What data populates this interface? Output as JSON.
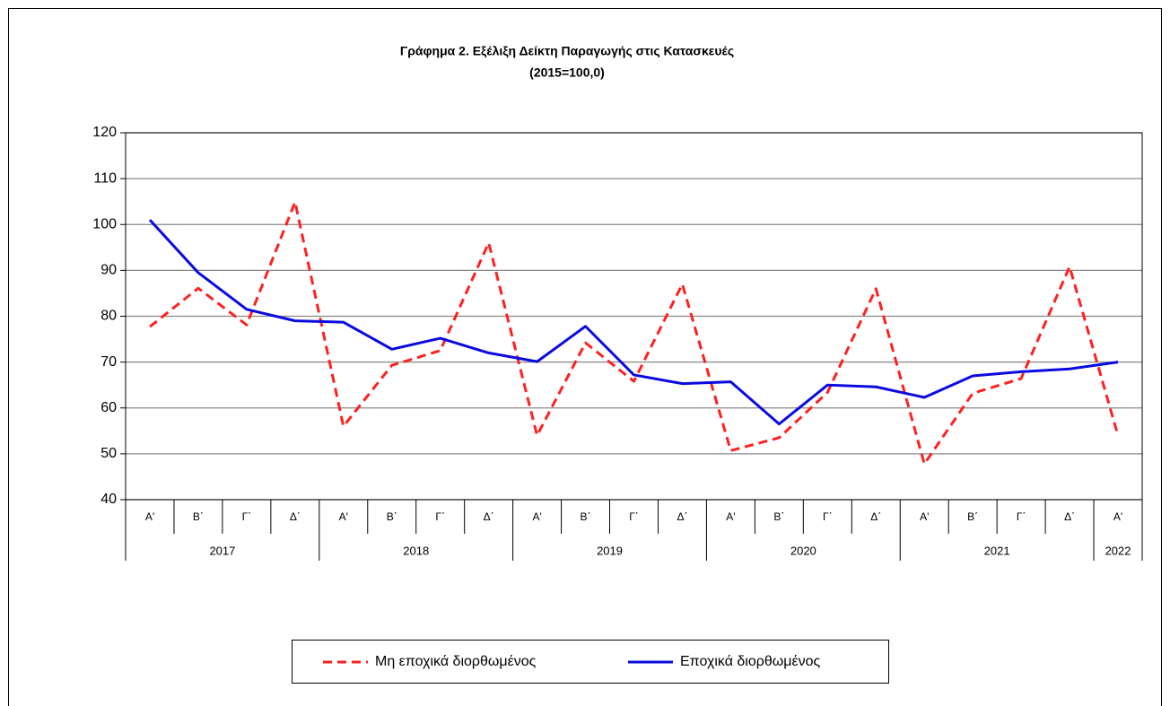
{
  "chart_data": {
    "type": "line",
    "title": "Γράφημα 2. Εξέλιξη Δείκτη Παραγωγής στις Κατασκευές",
    "subtitle": "(2015=100,0)",
    "categories": [
      "Α'",
      "Β΄",
      "Γ΄",
      "Δ΄",
      "Α'",
      "Β΄",
      "Γ΄",
      "Δ΄",
      "Α'",
      "Β΄",
      "Γ΄",
      "Δ΄",
      "Α'",
      "Β΄",
      "Γ΄",
      "Δ΄",
      "Α'",
      "Β΄",
      "Γ΄",
      "Δ΄",
      "Α'"
    ],
    "year_labels": [
      "2017",
      null,
      null,
      null,
      "2018",
      null,
      null,
      null,
      "2019",
      null,
      null,
      null,
      "2020",
      null,
      null,
      null,
      "2021",
      null,
      null,
      null,
      "2022"
    ],
    "series": [
      {
        "name": "Μη εποχικά διορθωμένος",
        "color": "#ff2020",
        "dashed": true,
        "values": [
          77.7,
          86.1,
          78.1,
          104.9,
          56,
          69.3,
          72.5,
          96,
          54,
          74.2,
          65.8,
          87,
          50.7,
          53.5,
          63.4,
          86,
          47.8,
          63.2,
          66.4,
          90.8,
          54
        ]
      },
      {
        "name": "Εποχικά διορθωμένος",
        "color": "#0a0ae0",
        "dashed": false,
        "values": [
          101,
          89.5,
          81.5,
          79,
          78.7,
          72.8,
          75.2,
          72,
          70.1,
          77.8,
          67.2,
          65.3,
          65.7,
          56.5,
          65,
          64.6,
          62.3,
          67,
          67.9,
          68.5,
          70
        ]
      }
    ],
    "ylim": [
      40,
      120
    ],
    "yticks": [
      40,
      50,
      60,
      70,
      80,
      90,
      100,
      110,
      120
    ],
    "grid": true
  }
}
